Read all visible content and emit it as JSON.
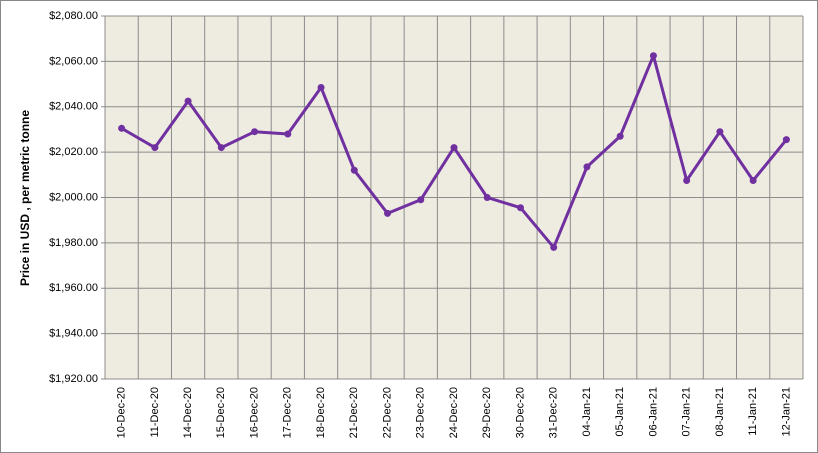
{
  "chart_data": {
    "type": "line",
    "ylabel": "Price in USD , per metric tonne",
    "categories": [
      "10-Dec-20",
      "11-Dec-20",
      "14-Dec-20",
      "15-Dec-20",
      "16-Dec-20",
      "17-Dec-20",
      "18-Dec-20",
      "21-Dec-20",
      "22-Dec-20",
      "23-Dec-20",
      "24-Dec-20",
      "29-Dec-20",
      "30-Dec-20",
      "31-Dec-20",
      "04-Jan-21",
      "05-Jan-21",
      "06-Jan-21",
      "07-Jan-21",
      "08-Jan-21",
      "11-Jan-21",
      "12-Jan-21"
    ],
    "values": [
      2030.5,
      2022,
      2042.5,
      2022,
      2029,
      2028,
      2048.5,
      2012,
      1993,
      1999,
      2022,
      2000,
      1995.5,
      1978,
      2013.5,
      2027,
      2062.5,
      2007.5,
      2029,
      2007.5,
      2025.5
    ],
    "color": "#7030a0",
    "ylim": [
      1920,
      2080
    ],
    "yticks": [
      {
        "value": 1920,
        "label": "$1,920.00"
      },
      {
        "value": 1940,
        "label": "$1,940.00"
      },
      {
        "value": 1960,
        "label": "$1,960.00"
      },
      {
        "value": 1980,
        "label": "$1,980.00"
      },
      {
        "value": 2000,
        "label": "$2,000.00"
      },
      {
        "value": 2020,
        "label": "$2,020.00"
      },
      {
        "value": 2040,
        "label": "$2,040.00"
      },
      {
        "value": 2060,
        "label": "$2,060.00"
      },
      {
        "value": 2080,
        "label": "$2,080.00"
      }
    ],
    "grid": true
  }
}
